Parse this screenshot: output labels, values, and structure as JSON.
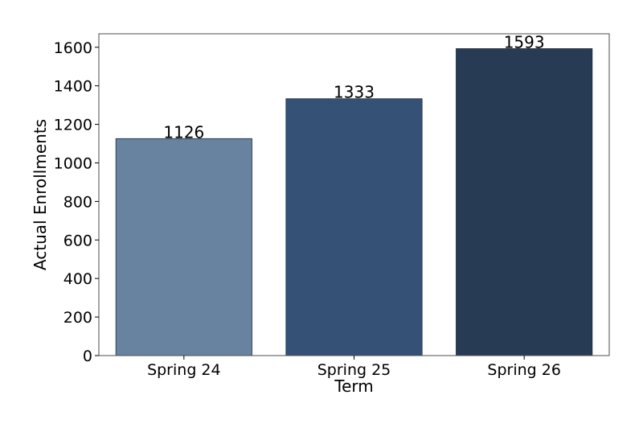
{
  "chart_data": {
    "type": "bar",
    "title": "",
    "xlabel": "Term",
    "ylabel": "Actual Enrollments",
    "categories": [
      "Spring 24",
      "Spring 25",
      "Spring 26"
    ],
    "values": [
      1126,
      1333,
      1593
    ],
    "data_labels": [
      "1126",
      "1333",
      "1593"
    ],
    "bar_colors": [
      "#6783a0",
      "#355276",
      "#283b55"
    ],
    "ylim": [
      0,
      1670
    ],
    "yticks": [
      0,
      200,
      400,
      600,
      800,
      1000,
      1200,
      1400,
      1600
    ],
    "ytick_labels": [
      "0",
      "200",
      "400",
      "600",
      "800",
      "1000",
      "1200",
      "1400",
      "1600"
    ],
    "grid": false,
    "legend": "none"
  }
}
